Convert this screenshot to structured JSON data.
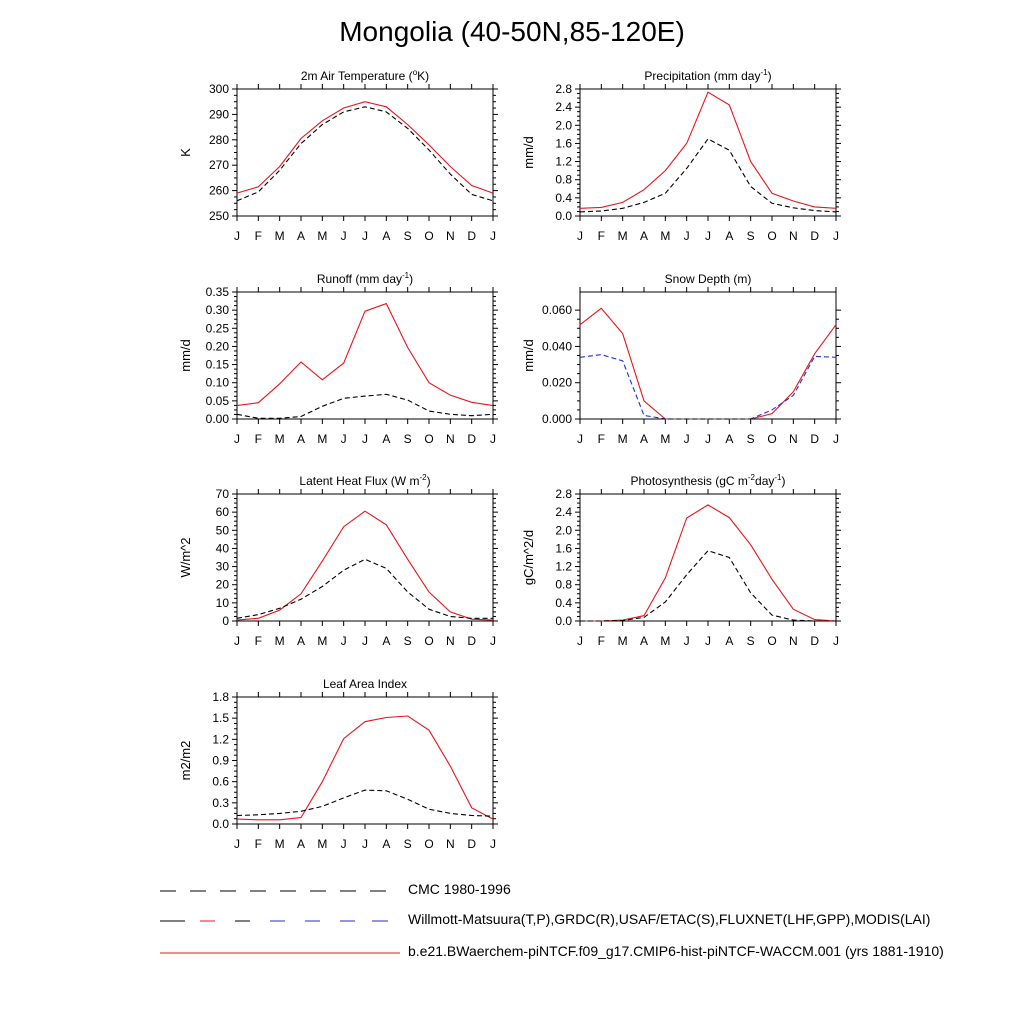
{
  "figure": {
    "title": "Mongolia (40-50N,85-120E)"
  },
  "colors": {
    "model": "#e8151b",
    "obs": "#1f2fd6",
    "cmc": "#000000"
  },
  "legend": [
    {
      "label": "CMC 1980-1996",
      "style": "cmc"
    },
    {
      "label": "Willmott-Matsuura(T,P),GRDC(R),USAF/ETAC(S),FLUXNET(LHF,GPP),MODIS(LAI)",
      "style": "obs"
    },
    {
      "label": "b.e21.BWaerchem-piNTCF.f09_g17.CMIP6-hist-piNTCF-WACCM.001 (yrs 1881-1910)",
      "style": "model"
    }
  ],
  "chart_data": [
    {
      "type": "line",
      "title": "2m Air Temperature (",
      "title_sup": "o",
      "title_end": "K)",
      "ylabel": "K",
      "x": [
        "J",
        "F",
        "M",
        "A",
        "M",
        "J",
        "J",
        "A",
        "S",
        "O",
        "N",
        "D",
        "J"
      ],
      "ylim": [
        250,
        300
      ],
      "yticks": [
        250,
        260,
        270,
        280,
        290,
        300
      ],
      "ytick_labels": [
        "250",
        "260",
        "270",
        "280",
        "290",
        "300"
      ],
      "series": [
        {
          "style": "model",
          "values": [
            259,
            261.5,
            269.5,
            280.5,
            287.5,
            292.5,
            295,
            293,
            286,
            278,
            269.5,
            262,
            259
          ]
        },
        {
          "style": "cmc",
          "values": [
            256,
            259.5,
            268,
            278.5,
            286,
            291,
            293,
            291,
            284.5,
            276,
            266.5,
            258.5,
            256
          ]
        }
      ]
    },
    {
      "type": "line",
      "title": "Precipitation (mm day",
      "title_sup": "-1",
      "title_end": ")",
      "ylabel": "mm/d",
      "x": [
        "J",
        "F",
        "M",
        "A",
        "M",
        "J",
        "J",
        "A",
        "S",
        "O",
        "N",
        "D",
        "J"
      ],
      "ylim": [
        0,
        2.8
      ],
      "yticks": [
        0,
        0.4,
        0.8,
        1.2,
        1.6,
        2.0,
        2.4,
        2.8
      ],
      "ytick_labels": [
        "0.0",
        "0.4",
        "0.8",
        "1.2",
        "1.6",
        "2.0",
        "2.4",
        "2.8"
      ],
      "series": [
        {
          "style": "model",
          "values": [
            0.17,
            0.19,
            0.3,
            0.58,
            1.0,
            1.6,
            2.73,
            2.45,
            1.2,
            0.5,
            0.33,
            0.2,
            0.17
          ]
        },
        {
          "style": "cmc",
          "values": [
            0.09,
            0.11,
            0.17,
            0.3,
            0.5,
            1.05,
            1.7,
            1.45,
            0.65,
            0.28,
            0.18,
            0.12,
            0.09
          ]
        }
      ]
    },
    {
      "type": "line",
      "title": "Runoff (mm day",
      "title_sup": "-1",
      "title_end": ")",
      "ylabel": "mm/d",
      "x": [
        "J",
        "F",
        "M",
        "A",
        "M",
        "J",
        "J",
        "A",
        "S",
        "O",
        "N",
        "D",
        "J"
      ],
      "ylim": [
        0,
        0.35
      ],
      "yticks": [
        0,
        0.05,
        0.1,
        0.15,
        0.2,
        0.25,
        0.3,
        0.35
      ],
      "ytick_labels": [
        "0.00",
        "0.05",
        "0.10",
        "0.15",
        "0.20",
        "0.25",
        "0.30",
        "0.35"
      ],
      "series": [
        {
          "style": "model",
          "values": [
            0.037,
            0.045,
            0.097,
            0.157,
            0.108,
            0.154,
            0.297,
            0.318,
            0.197,
            0.1,
            0.066,
            0.046,
            0.037
          ]
        },
        {
          "style": "cmc",
          "values": [
            0.013,
            0.002,
            0.002,
            0.007,
            0.035,
            0.057,
            0.063,
            0.068,
            0.052,
            0.022,
            0.013,
            0.009,
            0.013
          ]
        }
      ]
    },
    {
      "type": "line",
      "title": "Snow Depth (m)",
      "title_sup": "",
      "title_end": "",
      "ylabel": "mm/d",
      "x": [
        "J",
        "F",
        "M",
        "A",
        "M",
        "J",
        "J",
        "A",
        "S",
        "O",
        "N",
        "D",
        "J"
      ],
      "ylim": [
        0,
        0.07
      ],
      "yticks": [
        0,
        0.02,
        0.04,
        0.06
      ],
      "ytick_labels": [
        "0.000",
        "0.020",
        "0.040",
        "0.060"
      ],
      "series": [
        {
          "style": "model",
          "values": [
            0.052,
            0.061,
            0.047,
            0.01,
            0.0,
            0.0,
            0.0,
            0.0,
            0.0,
            0.003,
            0.015,
            0.036,
            0.052
          ]
        },
        {
          "style": "obs",
          "values": [
            0.034,
            0.0355,
            0.032,
            0.002,
            0.0,
            0.0,
            0.0,
            0.0,
            0.0,
            0.005,
            0.013,
            0.0345,
            0.034
          ]
        },
        {
          "style": "cmc",
          "values": [
            0.0,
            0.0,
            0.0,
            0.0,
            0.0,
            0.0,
            0.0,
            0.0,
            0.0,
            0.0,
            0.0,
            0.0,
            0.0
          ]
        }
      ]
    },
    {
      "type": "line",
      "title": "Latent Heat Flux (W m",
      "title_sup": "-2",
      "title_end": ")",
      "ylabel": "W/m^2",
      "x": [
        "J",
        "F",
        "M",
        "A",
        "M",
        "J",
        "J",
        "A",
        "S",
        "O",
        "N",
        "D",
        "J"
      ],
      "ylim": [
        0,
        70
      ],
      "yticks": [
        0,
        10,
        20,
        30,
        40,
        50,
        60,
        70
      ],
      "ytick_labels": [
        "0",
        "10",
        "20",
        "30",
        "40",
        "50",
        "60",
        "70"
      ],
      "series": [
        {
          "style": "model",
          "values": [
            0.5,
            1.5,
            6,
            15,
            33,
            52,
            60.5,
            53,
            34,
            16,
            5,
            1,
            0.5
          ]
        },
        {
          "style": "cmc",
          "values": [
            1.5,
            3.5,
            7,
            12,
            19,
            28,
            34,
            29,
            16,
            6.5,
            2.5,
            1.5,
            1.5
          ]
        }
      ]
    },
    {
      "type": "line",
      "title": "Photosynthesis (gC m",
      "title_sup": "-2",
      "title_mid": "day",
      "title_sup2": "-1",
      "title_end": ")",
      "ylabel": "gC/m^2/d",
      "x": [
        "J",
        "F",
        "M",
        "A",
        "M",
        "J",
        "J",
        "A",
        "S",
        "O",
        "N",
        "D",
        "J"
      ],
      "ylim": [
        0,
        2.8
      ],
      "yticks": [
        0,
        0.4,
        0.8,
        1.2,
        1.6,
        2.0,
        2.4,
        2.8
      ],
      "ytick_labels": [
        "0.0",
        "0.4",
        "0.8",
        "1.2",
        "1.6",
        "2.0",
        "2.4",
        "2.8"
      ],
      "series": [
        {
          "style": "model",
          "values": [
            0.0,
            0.0,
            0.02,
            0.12,
            0.95,
            2.27,
            2.56,
            2.28,
            1.68,
            0.92,
            0.26,
            0.03,
            0.0
          ]
        },
        {
          "style": "cmc",
          "values": [
            0.0,
            0.0,
            0.01,
            0.08,
            0.42,
            1.02,
            1.55,
            1.4,
            0.62,
            0.13,
            0.02,
            0.0,
            0.0
          ]
        }
      ]
    },
    {
      "type": "line",
      "title": "Leaf Area Index",
      "title_sup": "",
      "title_end": "",
      "ylabel": "m2/m2",
      "x": [
        "J",
        "F",
        "M",
        "A",
        "M",
        "J",
        "J",
        "A",
        "S",
        "O",
        "N",
        "D",
        "J"
      ],
      "ylim": [
        0,
        1.8
      ],
      "yticks": [
        0,
        0.3,
        0.6,
        0.9,
        1.2,
        1.5,
        1.8
      ],
      "ytick_labels": [
        "0.0",
        "0.3",
        "0.6",
        "0.9",
        "1.2",
        "1.5",
        "1.8"
      ],
      "series": [
        {
          "style": "model",
          "values": [
            0.07,
            0.06,
            0.06,
            0.09,
            0.6,
            1.21,
            1.45,
            1.51,
            1.53,
            1.33,
            0.82,
            0.23,
            0.07
          ]
        },
        {
          "style": "cmc",
          "values": [
            0.12,
            0.13,
            0.15,
            0.18,
            0.25,
            0.37,
            0.48,
            0.47,
            0.35,
            0.21,
            0.15,
            0.12,
            0.11
          ]
        }
      ]
    }
  ]
}
